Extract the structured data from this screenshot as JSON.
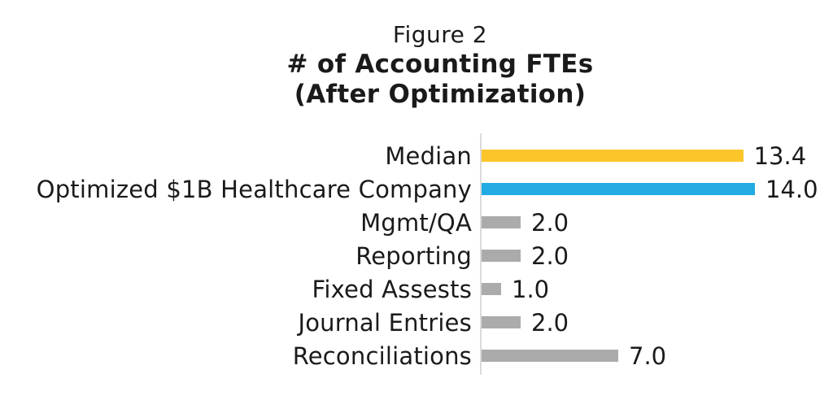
{
  "figure": {
    "title_line1": "Figure 2",
    "title_line2": "# of Accounting FTEs",
    "title_line3": "(After Optimization)"
  },
  "chart_data": {
    "type": "bar",
    "orientation": "horizontal",
    "title": "Figure 2",
    "subtitle": "# of Accounting FTEs (After Optimization)",
    "categories": [
      "Median",
      "Optimized $1B Healthcare Company",
      "Mgmt/QA",
      "Reporting",
      "Fixed Assests",
      "Journal Entries",
      "Reconciliations"
    ],
    "values": [
      13.4,
      14.0,
      2.0,
      2.0,
      1.0,
      2.0,
      7.0
    ],
    "value_labels": [
      "13.4",
      "14.0",
      "2.0",
      "2.0",
      "1.0",
      "2.0",
      "7.0"
    ],
    "bar_colors": [
      "#FCC62B",
      "#22ACE3",
      "#ABABAB",
      "#ABABAB",
      "#ABABAB",
      "#ABABAB",
      "#ABABAB"
    ],
    "xlim": [
      0,
      18
    ],
    "xlabel": "",
    "ylabel": "",
    "grid": false,
    "legend": false,
    "data_labels": "outside-end"
  },
  "colors": {
    "median_bar": "#FCC62B",
    "highlight_bar": "#22ACE3",
    "default_bar": "#ABABAB",
    "axis_line": "#DBDBDB",
    "text": "#1A1A1A",
    "background": "#FFFFFF"
  }
}
